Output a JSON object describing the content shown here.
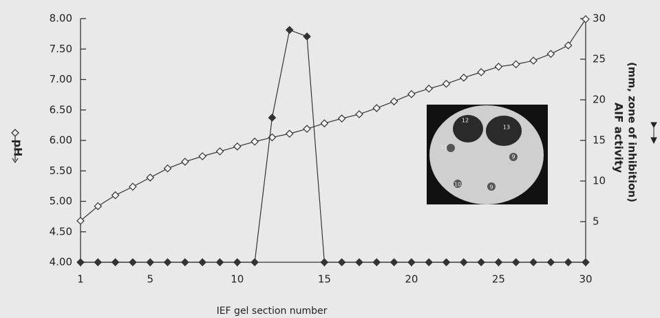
{
  "chart_data": {
    "type": "line",
    "x_label": "IEF gel section number",
    "y_label": "pH",
    "y2_label": "AIF activity",
    "y2_label_sub": "(mm, zone of inhibition)",
    "x": [
      1,
      2,
      3,
      4,
      5,
      6,
      7,
      8,
      9,
      10,
      11,
      12,
      13,
      14,
      15,
      16,
      17,
      18,
      19,
      20,
      21,
      22,
      23,
      24,
      25,
      26,
      27,
      28,
      29,
      30
    ],
    "xlim": [
      1,
      30
    ],
    "xticks": [
      1,
      5,
      10,
      15,
      20,
      25,
      30
    ],
    "ylim": [
      4,
      8
    ],
    "yticks": [
      {
        "value": 4,
        "label": "4.00"
      },
      {
        "value": 4.5,
        "label": "4.50"
      },
      {
        "value": 5,
        "label": "5.00"
      },
      {
        "value": 5.5,
        "label": "5.50"
      },
      {
        "value": 6,
        "label": "6.00"
      },
      {
        "value": 6.5,
        "label": "6.50"
      },
      {
        "value": 7,
        "label": "7.00"
      },
      {
        "value": 7.5,
        "label": "7.50"
      },
      {
        "value": 8,
        "label": "8.00"
      }
    ],
    "y2lim": [
      0,
      30
    ],
    "y2ticks": [
      5,
      10,
      15,
      20,
      25,
      30
    ],
    "series": [
      {
        "color": "#333333",
        "marker": "open",
        "values": [
          4.68,
          4.92,
          5.1,
          5.24,
          5.39,
          5.54,
          5.65,
          5.74,
          5.82,
          5.9,
          5.98,
          6.05,
          6.11,
          6.19,
          6.28,
          6.36,
          6.43,
          6.53,
          6.64,
          6.76,
          6.85,
          6.93,
          7.03,
          7.12,
          7.21,
          7.25,
          7.31,
          7.42,
          7.56,
          7.99
        ]
      },
      {
        "color": "#333333",
        "marker": "filled",
        "axis": "y2",
        "values": [
          0,
          0,
          0,
          0,
          0,
          0,
          0,
          0,
          0,
          0,
          0,
          17.8,
          28.6,
          27.8,
          0,
          0,
          0,
          0,
          0,
          0,
          0,
          0,
          0,
          0,
          0,
          0,
          0,
          0,
          0,
          0
        ]
      }
    ],
    "inset_labels": [
      "12",
      "13",
      "11",
      "9",
      "10",
      "9"
    ]
  }
}
